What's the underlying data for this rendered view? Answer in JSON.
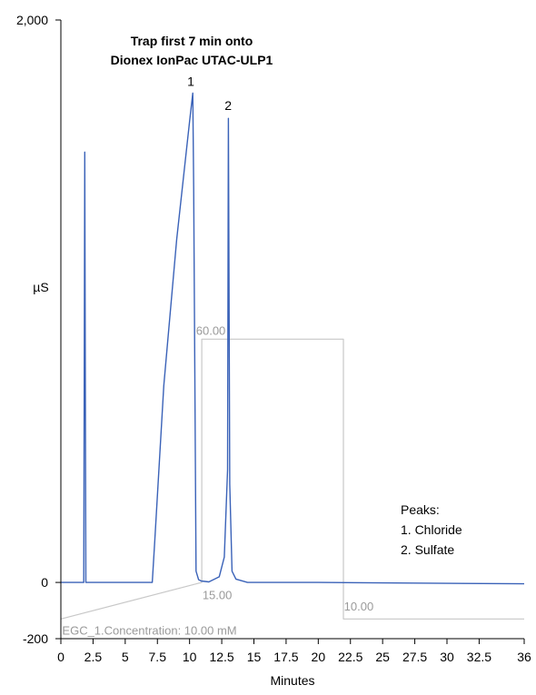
{
  "chart_data": {
    "type": "line",
    "title": "Trap first 7 min onto Dionex IonPac UTAC-ULP1",
    "xlabel": "Minutes",
    "ylabel": "µS",
    "xlim": [
      0,
      36
    ],
    "ylim": [
      -200,
      2000
    ],
    "x_ticks": [
      "0",
      "2.5",
      "5",
      "7.5",
      "10",
      "12.5",
      "15",
      "17.5",
      "20",
      "22.5",
      "25",
      "27.5",
      "30",
      "32.5",
      "36"
    ],
    "x_tick_values": [
      0,
      2.5,
      5,
      7.5,
      10,
      12.5,
      15,
      17.5,
      20,
      22.5,
      25,
      27.5,
      30,
      32.5,
      36
    ],
    "y_ticks": [
      "2,000",
      "0",
      "-200"
    ],
    "y_tick_values": [
      2000,
      0,
      -200
    ],
    "grid": false,
    "series": [
      {
        "color": "#3a62b8",
        "x": [
          0,
          1.7,
          1.78,
          1.86,
          1.94,
          2.05,
          7.1,
          7.3,
          8,
          9,
          10,
          10.25,
          10.32,
          10.5,
          10.7,
          10.9,
          11.5,
          12.3,
          12.7,
          12.95,
          13.02,
          13.12,
          13.3,
          13.6,
          14.5,
          20,
          36
        ],
        "y": [
          0,
          0,
          0,
          1530,
          0,
          0,
          0,
          150,
          700,
          1220,
          1640,
          1740,
          1400,
          40,
          10,
          5,
          2,
          20,
          90,
          400,
          1650,
          350,
          40,
          12,
          0,
          0,
          -5
        ]
      },
      {
        "color": "#c8c8c8",
        "x": [
          0,
          10.95,
          10.95,
          10.95,
          21.95,
          21.95,
          21.95,
          36
        ],
        "y": [
          -130,
          0,
          0,
          865,
          865,
          0,
          -130,
          -130
        ]
      }
    ],
    "peak_labels": [
      {
        "text": "1",
        "x": 10.1,
        "y": 1765
      },
      {
        "text": "2",
        "x": 13.0,
        "y": 1680
      }
    ],
    "gradient_labels": [
      {
        "text": "60.00",
        "x": 10.5,
        "y": 880
      },
      {
        "text": "15.00",
        "x": 11.0,
        "y": -60
      },
      {
        "text": "10.00",
        "x": 22.0,
        "y": -100
      },
      {
        "text": "EGC_1.Concentration: 10.00 mM",
        "x": 0.1,
        "y": -185
      }
    ],
    "legend": {
      "position": "right",
      "title": "Peaks:",
      "items": [
        "1. Chloride",
        "2. Sulfate"
      ]
    }
  }
}
